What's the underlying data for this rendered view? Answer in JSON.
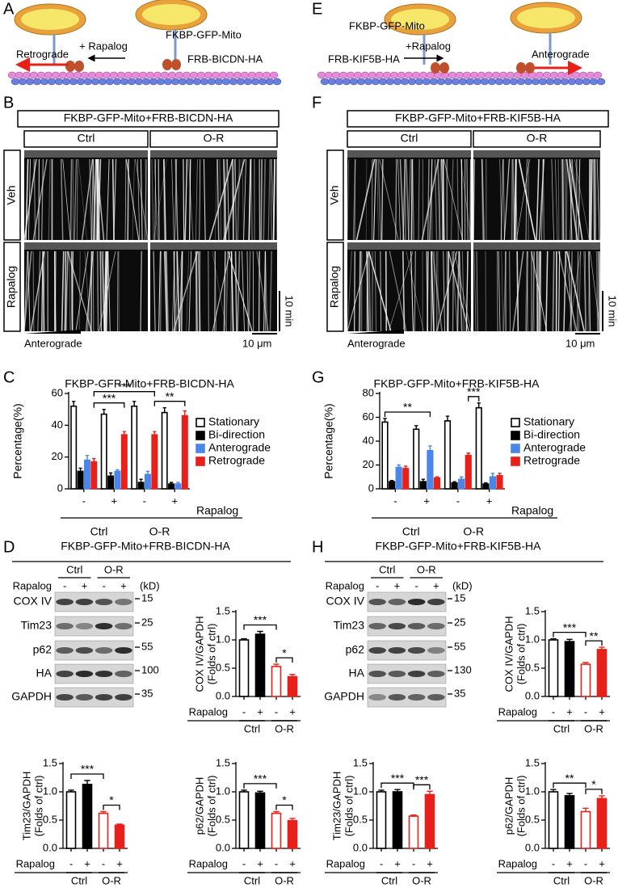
{
  "panels": [
    "A",
    "B",
    "C",
    "D",
    "E",
    "F",
    "G",
    "H"
  ],
  "diagrams": [
    {
      "mito_label": "FKBP-GFP-Mito",
      "arrow_label": "+ Rapalog",
      "adaptor_label": "FRB-BICDN-HA",
      "direction": "Retrograde"
    },
    {
      "mito_label": "FKBP-GFP-Mito",
      "arrow_label": "+Rapalog",
      "adaptor_label": "FRB-KIF5B-HA",
      "direction": "Anterograde"
    }
  ],
  "kymographs": [
    {
      "title": "FKBP-GFP-Mito+FRB-BICDN-HA",
      "columns": [
        "Ctrl",
        "O-R"
      ],
      "rows": [
        "Veh",
        "Rapalog"
      ],
      "time_scale": "10 min",
      "direction": "Anterograde",
      "space_scale": "10 μm"
    },
    {
      "title": "FKBP-GFP-Mito+FRB-KIF5B-HA",
      "columns": [
        "Ctrl",
        "O-R"
      ],
      "rows": [
        "Veh",
        "Rapalog"
      ],
      "time_scale": "10 min",
      "direction": "Anterograde",
      "space_scale": "10 μm"
    }
  ],
  "blots": [
    {
      "title": "FKBP-GFP-Mito+FRB-BICDN-HA",
      "groups": [
        "Ctrl",
        "O-R"
      ],
      "treatment": "Rapalog",
      "conditions": [
        "-",
        "+",
        "-",
        "+"
      ],
      "unit": "(kD)",
      "proteins": [
        "COX IV",
        "Tim23",
        "p62",
        "HA",
        "GAPDH"
      ],
      "markers": [
        15,
        25,
        55,
        100,
        35
      ]
    },
    {
      "title": "FKBP-GFP-Mito+FRB-KIF5B-HA",
      "groups": [
        "Ctrl",
        "O-R"
      ],
      "treatment": "Rapalog",
      "conditions": [
        "-",
        "+",
        "-",
        "+"
      ],
      "unit": "(kD)",
      "proteins": [
        "COX IV",
        "Tim23",
        "p62",
        "HA",
        "GAPDH"
      ],
      "markers": [
        15,
        25,
        55,
        130,
        35
      ]
    }
  ],
  "chart_data": [
    {
      "type": "grouped_bar",
      "title": "FKBP-GFP-Mito+FRB-BICDN-HA",
      "ylabel": "Percentage(%)",
      "categories": [
        "-",
        "+",
        "-",
        "+"
      ],
      "groups": [
        "Ctrl",
        "O-R"
      ],
      "factor": "Rapalog",
      "series": [
        {
          "name": "Stationary",
          "color": "#ffffff",
          "edge": "#000000",
          "values": [
            52,
            47,
            52,
            48
          ],
          "errors": [
            3,
            3,
            3,
            3
          ]
        },
        {
          "name": "Bi-direction",
          "color": "#000000",
          "edge": "#000000",
          "values": [
            11,
            8,
            4,
            3
          ],
          "errors": [
            2,
            2,
            2,
            1
          ]
        },
        {
          "name": "Anterograde",
          "color": "#4a86e8",
          "edge": "#4a86e8",
          "values": [
            18,
            11,
            9,
            3
          ],
          "errors": [
            3,
            1,
            2,
            1
          ]
        },
        {
          "name": "Retrograde",
          "color": "#e8201a",
          "edge": "#e8201a",
          "values": [
            17,
            34,
            34,
            46
          ],
          "errors": [
            2,
            2,
            2,
            3
          ]
        }
      ],
      "ylim": [
        0,
        60
      ],
      "yticks": [
        0,
        20,
        40,
        60
      ],
      "significance": [
        {
          "label": "***",
          "between": [
            [
              3,
              0
            ],
            [
              3,
              1
            ]
          ]
        },
        {
          "label": "***",
          "between": [
            [
              3,
              0
            ],
            [
              3,
              2
            ]
          ]
        },
        {
          "label": "**",
          "between": [
            [
              3,
              2
            ],
            [
              3,
              3
            ]
          ]
        }
      ]
    },
    {
      "type": "grouped_bar",
      "title": "FKBP-GFP-Mito+FRB-KIF5B-HA",
      "ylabel": "Percentage(%)",
      "categories": [
        "-",
        "+",
        "-",
        "+"
      ],
      "groups": [
        "Ctrl",
        "O-R"
      ],
      "factor": "Rapalog",
      "series": [
        {
          "name": "Stationary",
          "color": "#ffffff",
          "edge": "#000000",
          "values": [
            56,
            50,
            57,
            68
          ],
          "errors": [
            3,
            3,
            4,
            4
          ]
        },
        {
          "name": "Bi-direction",
          "color": "#000000",
          "edge": "#000000",
          "values": [
            6,
            6,
            5,
            4
          ],
          "errors": [
            1,
            2,
            1,
            1
          ]
        },
        {
          "name": "Anterograde",
          "color": "#4a86e8",
          "edge": "#4a86e8",
          "values": [
            18,
            32,
            8,
            10
          ],
          "errors": [
            2,
            4,
            2,
            3
          ]
        },
        {
          "name": "Retrograde",
          "color": "#e8201a",
          "edge": "#e8201a",
          "values": [
            17,
            9,
            28,
            11
          ],
          "errors": [
            2,
            1,
            2,
            2
          ]
        }
      ],
      "ylim": [
        0,
        80
      ],
      "yticks": [
        0,
        20,
        40,
        60,
        80
      ],
      "significance": [
        {
          "label": "**",
          "between": [
            [
              0,
              0
            ],
            [
              2,
              1
            ]
          ]
        },
        {
          "label": "***",
          "between": [
            [
              3,
              2
            ],
            [
              0,
              3
            ]
          ]
        }
      ]
    },
    {
      "type": "bar",
      "ylabel": [
        "COX IV/GAPDH",
        "(Folds of ctrl)"
      ],
      "categories": [
        "-",
        "+",
        "-",
        "+"
      ],
      "groups": [
        "Ctrl",
        "O-R"
      ],
      "factor": "Rapalog",
      "values": [
        1.0,
        1.1,
        0.53,
        0.35
      ],
      "errors": [
        0.02,
        0.05,
        0.04,
        0.04
      ],
      "colors": [
        "#ffffff",
        "#000000",
        "#ffffff",
        "#e8201a"
      ],
      "edges": [
        "#000000",
        "#000000",
        "#e8201a",
        "#e8201a"
      ],
      "ylim": [
        0,
        1.5
      ],
      "yticks": [
        {
          "value": 0,
          "label": "0.0"
        },
        {
          "value": 0.5,
          "label": "0.5"
        },
        {
          "value": 1,
          "label": "1.0"
        },
        {
          "value": 1.5,
          "label": "1.5"
        }
      ],
      "significance": [
        {
          "label": "***",
          "between": [
            0,
            2
          ]
        },
        {
          "label": "*",
          "between": [
            2,
            3
          ]
        }
      ]
    },
    {
      "type": "bar",
      "ylabel": [
        "Tim23/GAPDH",
        "(Folds of ctrl)"
      ],
      "categories": [
        "-",
        "+",
        "-",
        "+"
      ],
      "groups": [
        "Ctrl",
        "O-R"
      ],
      "factor": "Rapalog",
      "values": [
        1.0,
        1.13,
        0.62,
        0.41
      ],
      "errors": [
        0.03,
        0.07,
        0.03,
        0.02
      ],
      "colors": [
        "#ffffff",
        "#000000",
        "#ffffff",
        "#e8201a"
      ],
      "edges": [
        "#000000",
        "#000000",
        "#e8201a",
        "#e8201a"
      ],
      "ylim": [
        0,
        1.5
      ],
      "yticks": [
        {
          "value": 0,
          "label": "0.0"
        },
        {
          "value": 0.5,
          "label": "0.5"
        },
        {
          "value": 1,
          "label": "1.0"
        },
        {
          "value": 1.5,
          "label": "1.5"
        }
      ],
      "significance": [
        {
          "label": "***",
          "between": [
            0,
            2
          ]
        },
        {
          "label": "*",
          "between": [
            2,
            3
          ]
        }
      ]
    },
    {
      "type": "bar",
      "ylabel": [
        "p62/GAPDH",
        "(Folds of ctrl)"
      ],
      "categories": [
        "-",
        "+",
        "-",
        "+"
      ],
      "groups": [
        "Ctrl",
        "O-R"
      ],
      "factor": "Rapalog",
      "values": [
        1.0,
        0.98,
        0.62,
        0.49
      ],
      "errors": [
        0.03,
        0.03,
        0.03,
        0.04
      ],
      "colors": [
        "#ffffff",
        "#000000",
        "#ffffff",
        "#e8201a"
      ],
      "edges": [
        "#000000",
        "#000000",
        "#e8201a",
        "#e8201a"
      ],
      "ylim": [
        0,
        1.5
      ],
      "yticks": [
        {
          "value": 0,
          "label": "0.0"
        },
        {
          "value": 0.5,
          "label": "0.5"
        },
        {
          "value": 1,
          "label": "1.0"
        },
        {
          "value": 1.5,
          "label": "1.5"
        }
      ],
      "significance": [
        {
          "label": "***",
          "between": [
            0,
            2
          ]
        },
        {
          "label": "*",
          "between": [
            2,
            3
          ]
        }
      ]
    },
    {
      "type": "bar",
      "ylabel": [
        "COX IV/GAPDH",
        "(Folds of ctrl)"
      ],
      "categories": [
        "-",
        "+",
        "-",
        "+"
      ],
      "groups": [
        "Ctrl",
        "O-R"
      ],
      "factor": "Rapalog",
      "values": [
        1.0,
        0.97,
        0.57,
        0.83
      ],
      "errors": [
        0.02,
        0.04,
        0.03,
        0.04
      ],
      "colors": [
        "#ffffff",
        "#000000",
        "#ffffff",
        "#e8201a"
      ],
      "edges": [
        "#000000",
        "#000000",
        "#e8201a",
        "#e8201a"
      ],
      "ylim": [
        0,
        1.5
      ],
      "yticks": [
        {
          "value": 0,
          "label": "0.0"
        },
        {
          "value": 0.5,
          "label": "0.5"
        },
        {
          "value": 1,
          "label": "1.0"
        },
        {
          "value": 1.5,
          "label": "1.5"
        }
      ],
      "significance": [
        {
          "label": "***",
          "between": [
            0,
            2
          ]
        },
        {
          "label": "**",
          "between": [
            2,
            3
          ]
        }
      ]
    },
    {
      "type": "bar",
      "ylabel": [
        "Tim23/GAPDH",
        "(Folds of ctrl)"
      ],
      "categories": [
        "-",
        "+",
        "-",
        "+"
      ],
      "groups": [
        "Ctrl",
        "O-R"
      ],
      "factor": "Rapalog",
      "values": [
        1.0,
        1.0,
        0.57,
        0.95
      ],
      "errors": [
        0.03,
        0.04,
        0.02,
        0.06
      ],
      "colors": [
        "#ffffff",
        "#000000",
        "#ffffff",
        "#e8201a"
      ],
      "edges": [
        "#000000",
        "#000000",
        "#e8201a",
        "#e8201a"
      ],
      "ylim": [
        0,
        1.5
      ],
      "yticks": [
        {
          "value": 0,
          "label": "0.0"
        },
        {
          "value": 0.5,
          "label": "0.5"
        },
        {
          "value": 1,
          "label": "1.0"
        },
        {
          "value": 1.5,
          "label": "1.5"
        }
      ],
      "significance": [
        {
          "label": "***",
          "between": [
            0,
            2
          ]
        },
        {
          "label": "***",
          "between": [
            2,
            3
          ]
        }
      ]
    },
    {
      "type": "bar",
      "ylabel": [
        "p62/GAPDH",
        "(Folds of ctrl)"
      ],
      "categories": [
        "-",
        "+",
        "-",
        "+"
      ],
      "groups": [
        "Ctrl",
        "O-R"
      ],
      "factor": "Rapalog",
      "values": [
        1.0,
        0.93,
        0.65,
        0.88
      ],
      "errors": [
        0.04,
        0.04,
        0.06,
        0.05
      ],
      "colors": [
        "#ffffff",
        "#000000",
        "#ffffff",
        "#e8201a"
      ],
      "edges": [
        "#000000",
        "#000000",
        "#e8201a",
        "#e8201a"
      ],
      "ylim": [
        0,
        1.5
      ],
      "yticks": [
        {
          "value": 0,
          "label": "0.0"
        },
        {
          "value": 0.5,
          "label": "0.5"
        },
        {
          "value": 1,
          "label": "1.0"
        },
        {
          "value": 1.5,
          "label": "1.5"
        }
      ],
      "significance": [
        {
          "label": "**",
          "between": [
            0,
            2
          ]
        },
        {
          "label": "*",
          "between": [
            2,
            3
          ]
        }
      ]
    }
  ]
}
